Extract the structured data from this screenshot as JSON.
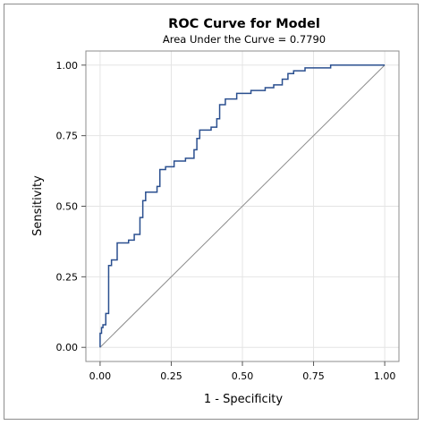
{
  "chart_data": {
    "type": "line",
    "title": "ROC Curve for Model",
    "subtitle": "Area Under the Curve = 0.7790",
    "xlabel": "1 - Specificity",
    "ylabel": "Sensitivity",
    "xlim": [
      -0.05,
      1.05
    ],
    "ylim": [
      -0.05,
      1.05
    ],
    "x_ticks": [
      "0.00",
      "0.25",
      "0.50",
      "0.75",
      "1.00"
    ],
    "y_ticks": [
      "0.00",
      "0.25",
      "0.50",
      "0.75",
      "1.00"
    ],
    "grid": true,
    "legend": "none",
    "series": [
      {
        "style": "step",
        "color": "#2a4f8f",
        "x": [
          0.0,
          0.0,
          0.005,
          0.005,
          0.01,
          0.01,
          0.02,
          0.02,
          0.03,
          0.03,
          0.04,
          0.04,
          0.06,
          0.06,
          0.1,
          0.1,
          0.12,
          0.12,
          0.14,
          0.14,
          0.15,
          0.15,
          0.16,
          0.16,
          0.2,
          0.2,
          0.21,
          0.21,
          0.23,
          0.23,
          0.26,
          0.26,
          0.3,
          0.3,
          0.33,
          0.33,
          0.34,
          0.34,
          0.35,
          0.35,
          0.39,
          0.39,
          0.41,
          0.41,
          0.42,
          0.42,
          0.44,
          0.44,
          0.48,
          0.48,
          0.53,
          0.53,
          0.58,
          0.58,
          0.61,
          0.61,
          0.64,
          0.64,
          0.66,
          0.66,
          0.68,
          0.68,
          0.72,
          0.72,
          0.81,
          0.81,
          1.0
        ],
        "y": [
          0.0,
          0.05,
          0.05,
          0.07,
          0.07,
          0.08,
          0.08,
          0.12,
          0.12,
          0.29,
          0.29,
          0.31,
          0.31,
          0.37,
          0.37,
          0.38,
          0.38,
          0.4,
          0.4,
          0.46,
          0.46,
          0.52,
          0.52,
          0.55,
          0.55,
          0.57,
          0.57,
          0.63,
          0.63,
          0.64,
          0.64,
          0.66,
          0.66,
          0.67,
          0.67,
          0.7,
          0.7,
          0.74,
          0.74,
          0.77,
          0.77,
          0.78,
          0.78,
          0.81,
          0.81,
          0.86,
          0.86,
          0.88,
          0.88,
          0.9,
          0.9,
          0.91,
          0.91,
          0.92,
          0.92,
          0.93,
          0.93,
          0.95,
          0.95,
          0.97,
          0.97,
          0.98,
          0.98,
          0.99,
          0.99,
          1.0,
          1.0
        ]
      }
    ],
    "reference_line": {
      "x": [
        0,
        1
      ],
      "y": [
        0,
        1
      ],
      "color": "#8c8c8c"
    }
  }
}
